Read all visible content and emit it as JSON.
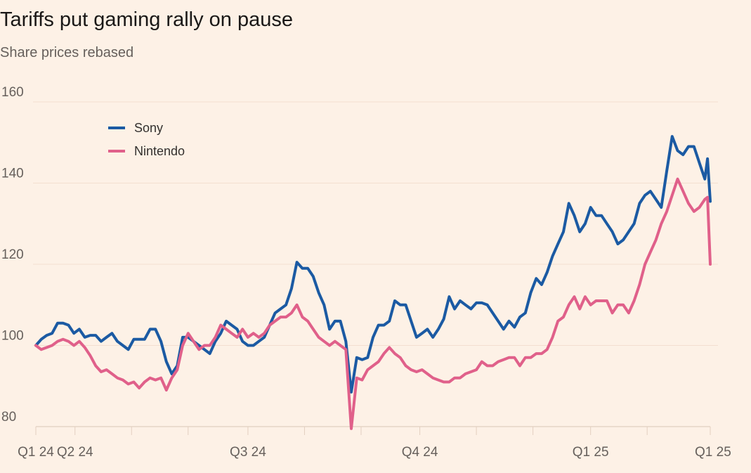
{
  "chart_data": {
    "type": "line",
    "title": "Tariffs put gaming rally on pause",
    "subtitle": "Share prices rebased",
    "xlabel": "",
    "ylabel": "",
    "ylim": [
      80,
      160
    ],
    "y_ticks": [
      80,
      100,
      120,
      140,
      160
    ],
    "x_range": [
      0,
      12.4
    ],
    "x_ticks": [
      {
        "label": "Q1 24",
        "value": 0,
        "anchor": "middle"
      },
      {
        "label": "Q2 24",
        "value": 0.72,
        "anchor": "middle"
      },
      {
        "label": "Q3 24",
        "value": 3.9,
        "anchor": "middle"
      },
      {
        "label": "Q4 24",
        "value": 7.06,
        "anchor": "middle"
      },
      {
        "label": "Q1 25",
        "value": 10.2,
        "anchor": "middle"
      },
      {
        "label": "Q1 25",
        "value": 12.4,
        "anchor": "start"
      }
    ],
    "minor_ticks": [
      1.76,
      2.8,
      4.94,
      5.98,
      8.1,
      9.14,
      11.24
    ],
    "grid": true,
    "legend_position": "top-left",
    "series": [
      {
        "name": "Sony",
        "color": "#1b5aa3",
        "points": [
          [
            0,
            100
          ],
          [
            0.1,
            101.5
          ],
          [
            0.2,
            102.5
          ],
          [
            0.3,
            103
          ],
          [
            0.4,
            105.5
          ],
          [
            0.5,
            105.5
          ],
          [
            0.6,
            105
          ],
          [
            0.7,
            103
          ],
          [
            0.8,
            104
          ],
          [
            0.9,
            102
          ],
          [
            1.0,
            102.5
          ],
          [
            1.1,
            102.5
          ],
          [
            1.2,
            101
          ],
          [
            1.3,
            102
          ],
          [
            1.4,
            103
          ],
          [
            1.5,
            101
          ],
          [
            1.6,
            100
          ],
          [
            1.7,
            99
          ],
          [
            1.8,
            101.5
          ],
          [
            1.9,
            101.5
          ],
          [
            2.0,
            101.5
          ],
          [
            2.1,
            104
          ],
          [
            2.2,
            104
          ],
          [
            2.3,
            101
          ],
          [
            2.4,
            96
          ],
          [
            2.5,
            93
          ],
          [
            2.6,
            95
          ],
          [
            2.7,
            102
          ],
          [
            2.8,
            102
          ],
          [
            2.9,
            101
          ],
          [
            3.0,
            100
          ],
          [
            3.1,
            99
          ],
          [
            3.2,
            98
          ],
          [
            3.3,
            101
          ],
          [
            3.4,
            103
          ],
          [
            3.5,
            106
          ],
          [
            3.6,
            105
          ],
          [
            3.7,
            104
          ],
          [
            3.8,
            101
          ],
          [
            3.9,
            100
          ],
          [
            4.0,
            100
          ],
          [
            4.1,
            101
          ],
          [
            4.2,
            102
          ],
          [
            4.3,
            105
          ],
          [
            4.4,
            108
          ],
          [
            4.5,
            109
          ],
          [
            4.6,
            110
          ],
          [
            4.7,
            114
          ],
          [
            4.8,
            120.5
          ],
          [
            4.9,
            119
          ],
          [
            5.0,
            119
          ],
          [
            5.1,
            117
          ],
          [
            5.2,
            113
          ],
          [
            5.3,
            110
          ],
          [
            5.4,
            104
          ],
          [
            5.5,
            106
          ],
          [
            5.6,
            106
          ],
          [
            5.7,
            101
          ],
          [
            5.8,
            88.5
          ],
          [
            5.9,
            97
          ],
          [
            6.0,
            96.5
          ],
          [
            6.1,
            97
          ],
          [
            6.2,
            102
          ],
          [
            6.3,
            105
          ],
          [
            6.4,
            105
          ],
          [
            6.5,
            106
          ],
          [
            6.6,
            111
          ],
          [
            6.7,
            110
          ],
          [
            6.8,
            110
          ],
          [
            6.9,
            106
          ],
          [
            7.0,
            102
          ],
          [
            7.1,
            103
          ],
          [
            7.2,
            104
          ],
          [
            7.3,
            102
          ],
          [
            7.4,
            104
          ],
          [
            7.5,
            106.5
          ],
          [
            7.6,
            112
          ],
          [
            7.7,
            109
          ],
          [
            7.8,
            111
          ],
          [
            7.9,
            110
          ],
          [
            8.0,
            109
          ],
          [
            8.1,
            110.5
          ],
          [
            8.2,
            110.5
          ],
          [
            8.3,
            110
          ],
          [
            8.4,
            108
          ],
          [
            8.5,
            106
          ],
          [
            8.6,
            104
          ],
          [
            8.7,
            106
          ],
          [
            8.8,
            104.5
          ],
          [
            8.9,
            107
          ],
          [
            9.0,
            108
          ],
          [
            9.1,
            113
          ],
          [
            9.2,
            116.5
          ],
          [
            9.3,
            115
          ],
          [
            9.4,
            118
          ],
          [
            9.5,
            122
          ],
          [
            9.6,
            125
          ],
          [
            9.7,
            128
          ],
          [
            9.8,
            135
          ],
          [
            9.9,
            132
          ],
          [
            10.0,
            128
          ],
          [
            10.1,
            130
          ],
          [
            10.2,
            134
          ],
          [
            10.3,
            132
          ],
          [
            10.4,
            132
          ],
          [
            10.5,
            130
          ],
          [
            10.6,
            128
          ],
          [
            10.7,
            125
          ],
          [
            10.8,
            126
          ],
          [
            10.9,
            128
          ],
          [
            11.0,
            130
          ],
          [
            11.1,
            135
          ],
          [
            11.2,
            137
          ],
          [
            11.3,
            138
          ],
          [
            11.4,
            136
          ],
          [
            11.5,
            134
          ],
          [
            11.6,
            143
          ],
          [
            11.7,
            151.5
          ],
          [
            11.8,
            148
          ],
          [
            11.9,
            147
          ],
          [
            12.0,
            149
          ],
          [
            12.1,
            149
          ],
          [
            12.2,
            145
          ],
          [
            12.3,
            141
          ],
          [
            12.35,
            146
          ],
          [
            12.4,
            135.5
          ]
        ]
      },
      {
        "name": "Nintendo",
        "color": "#e0608a",
        "points": [
          [
            0,
            100
          ],
          [
            0.1,
            99
          ],
          [
            0.2,
            99.5
          ],
          [
            0.3,
            100
          ],
          [
            0.4,
            101
          ],
          [
            0.5,
            101.5
          ],
          [
            0.6,
            101
          ],
          [
            0.7,
            100
          ],
          [
            0.8,
            101
          ],
          [
            0.9,
            99.5
          ],
          [
            1.0,
            97.5
          ],
          [
            1.1,
            95
          ],
          [
            1.2,
            93.5
          ],
          [
            1.3,
            94
          ],
          [
            1.4,
            93
          ],
          [
            1.5,
            92
          ],
          [
            1.6,
            91.5
          ],
          [
            1.7,
            90.5
          ],
          [
            1.8,
            91
          ],
          [
            1.9,
            89.5
          ],
          [
            2.0,
            91
          ],
          [
            2.1,
            92
          ],
          [
            2.2,
            91.5
          ],
          [
            2.3,
            92
          ],
          [
            2.4,
            89
          ],
          [
            2.5,
            92
          ],
          [
            2.6,
            94
          ],
          [
            2.7,
            100
          ],
          [
            2.8,
            103
          ],
          [
            2.9,
            101
          ],
          [
            3.0,
            99
          ],
          [
            3.1,
            100
          ],
          [
            3.2,
            100
          ],
          [
            3.3,
            102
          ],
          [
            3.4,
            105
          ],
          [
            3.5,
            104
          ],
          [
            3.6,
            103
          ],
          [
            3.7,
            102
          ],
          [
            3.8,
            104
          ],
          [
            3.9,
            102
          ],
          [
            4.0,
            103
          ],
          [
            4.1,
            102
          ],
          [
            4.2,
            103
          ],
          [
            4.3,
            105
          ],
          [
            4.4,
            106
          ],
          [
            4.5,
            107
          ],
          [
            4.6,
            107
          ],
          [
            4.7,
            108
          ],
          [
            4.8,
            110
          ],
          [
            4.9,
            107
          ],
          [
            5.0,
            106
          ],
          [
            5.1,
            104
          ],
          [
            5.2,
            102
          ],
          [
            5.3,
            101
          ],
          [
            5.4,
            100
          ],
          [
            5.5,
            101
          ],
          [
            5.6,
            100
          ],
          [
            5.7,
            99
          ],
          [
            5.8,
            79.5
          ],
          [
            5.9,
            92
          ],
          [
            6.0,
            91.5
          ],
          [
            6.1,
            94
          ],
          [
            6.2,
            95
          ],
          [
            6.3,
            96
          ],
          [
            6.4,
            98
          ],
          [
            6.5,
            99.5
          ],
          [
            6.6,
            98
          ],
          [
            6.7,
            97
          ],
          [
            6.8,
            95
          ],
          [
            6.9,
            94
          ],
          [
            7.0,
            93.5
          ],
          [
            7.1,
            94
          ],
          [
            7.2,
            93
          ],
          [
            7.3,
            92
          ],
          [
            7.4,
            91.5
          ],
          [
            7.5,
            91
          ],
          [
            7.6,
            91
          ],
          [
            7.7,
            92
          ],
          [
            7.8,
            92
          ],
          [
            7.9,
            93
          ],
          [
            8.0,
            93.5
          ],
          [
            8.1,
            94
          ],
          [
            8.2,
            96
          ],
          [
            8.3,
            95
          ],
          [
            8.4,
            95
          ],
          [
            8.5,
            96
          ],
          [
            8.6,
            96.5
          ],
          [
            8.7,
            97
          ],
          [
            8.8,
            97
          ],
          [
            8.9,
            95
          ],
          [
            9.0,
            97
          ],
          [
            9.1,
            97
          ],
          [
            9.2,
            98
          ],
          [
            9.3,
            98
          ],
          [
            9.4,
            99
          ],
          [
            9.5,
            102
          ],
          [
            9.6,
            106
          ],
          [
            9.7,
            107
          ],
          [
            9.8,
            110
          ],
          [
            9.9,
            112
          ],
          [
            10.0,
            109
          ],
          [
            10.1,
            112
          ],
          [
            10.2,
            110
          ],
          [
            10.3,
            111
          ],
          [
            10.4,
            111
          ],
          [
            10.5,
            111
          ],
          [
            10.6,
            108
          ],
          [
            10.7,
            110
          ],
          [
            10.8,
            110
          ],
          [
            10.9,
            108
          ],
          [
            11.0,
            111
          ],
          [
            11.1,
            115
          ],
          [
            11.2,
            120
          ],
          [
            11.3,
            123
          ],
          [
            11.4,
            126
          ],
          [
            11.5,
            130
          ],
          [
            11.6,
            133
          ],
          [
            11.7,
            137
          ],
          [
            11.8,
            141
          ],
          [
            11.9,
            138
          ],
          [
            12.0,
            135
          ],
          [
            12.1,
            133
          ],
          [
            12.2,
            134
          ],
          [
            12.3,
            136
          ],
          [
            12.35,
            136.5
          ],
          [
            12.4,
            120
          ]
        ]
      }
    ]
  }
}
